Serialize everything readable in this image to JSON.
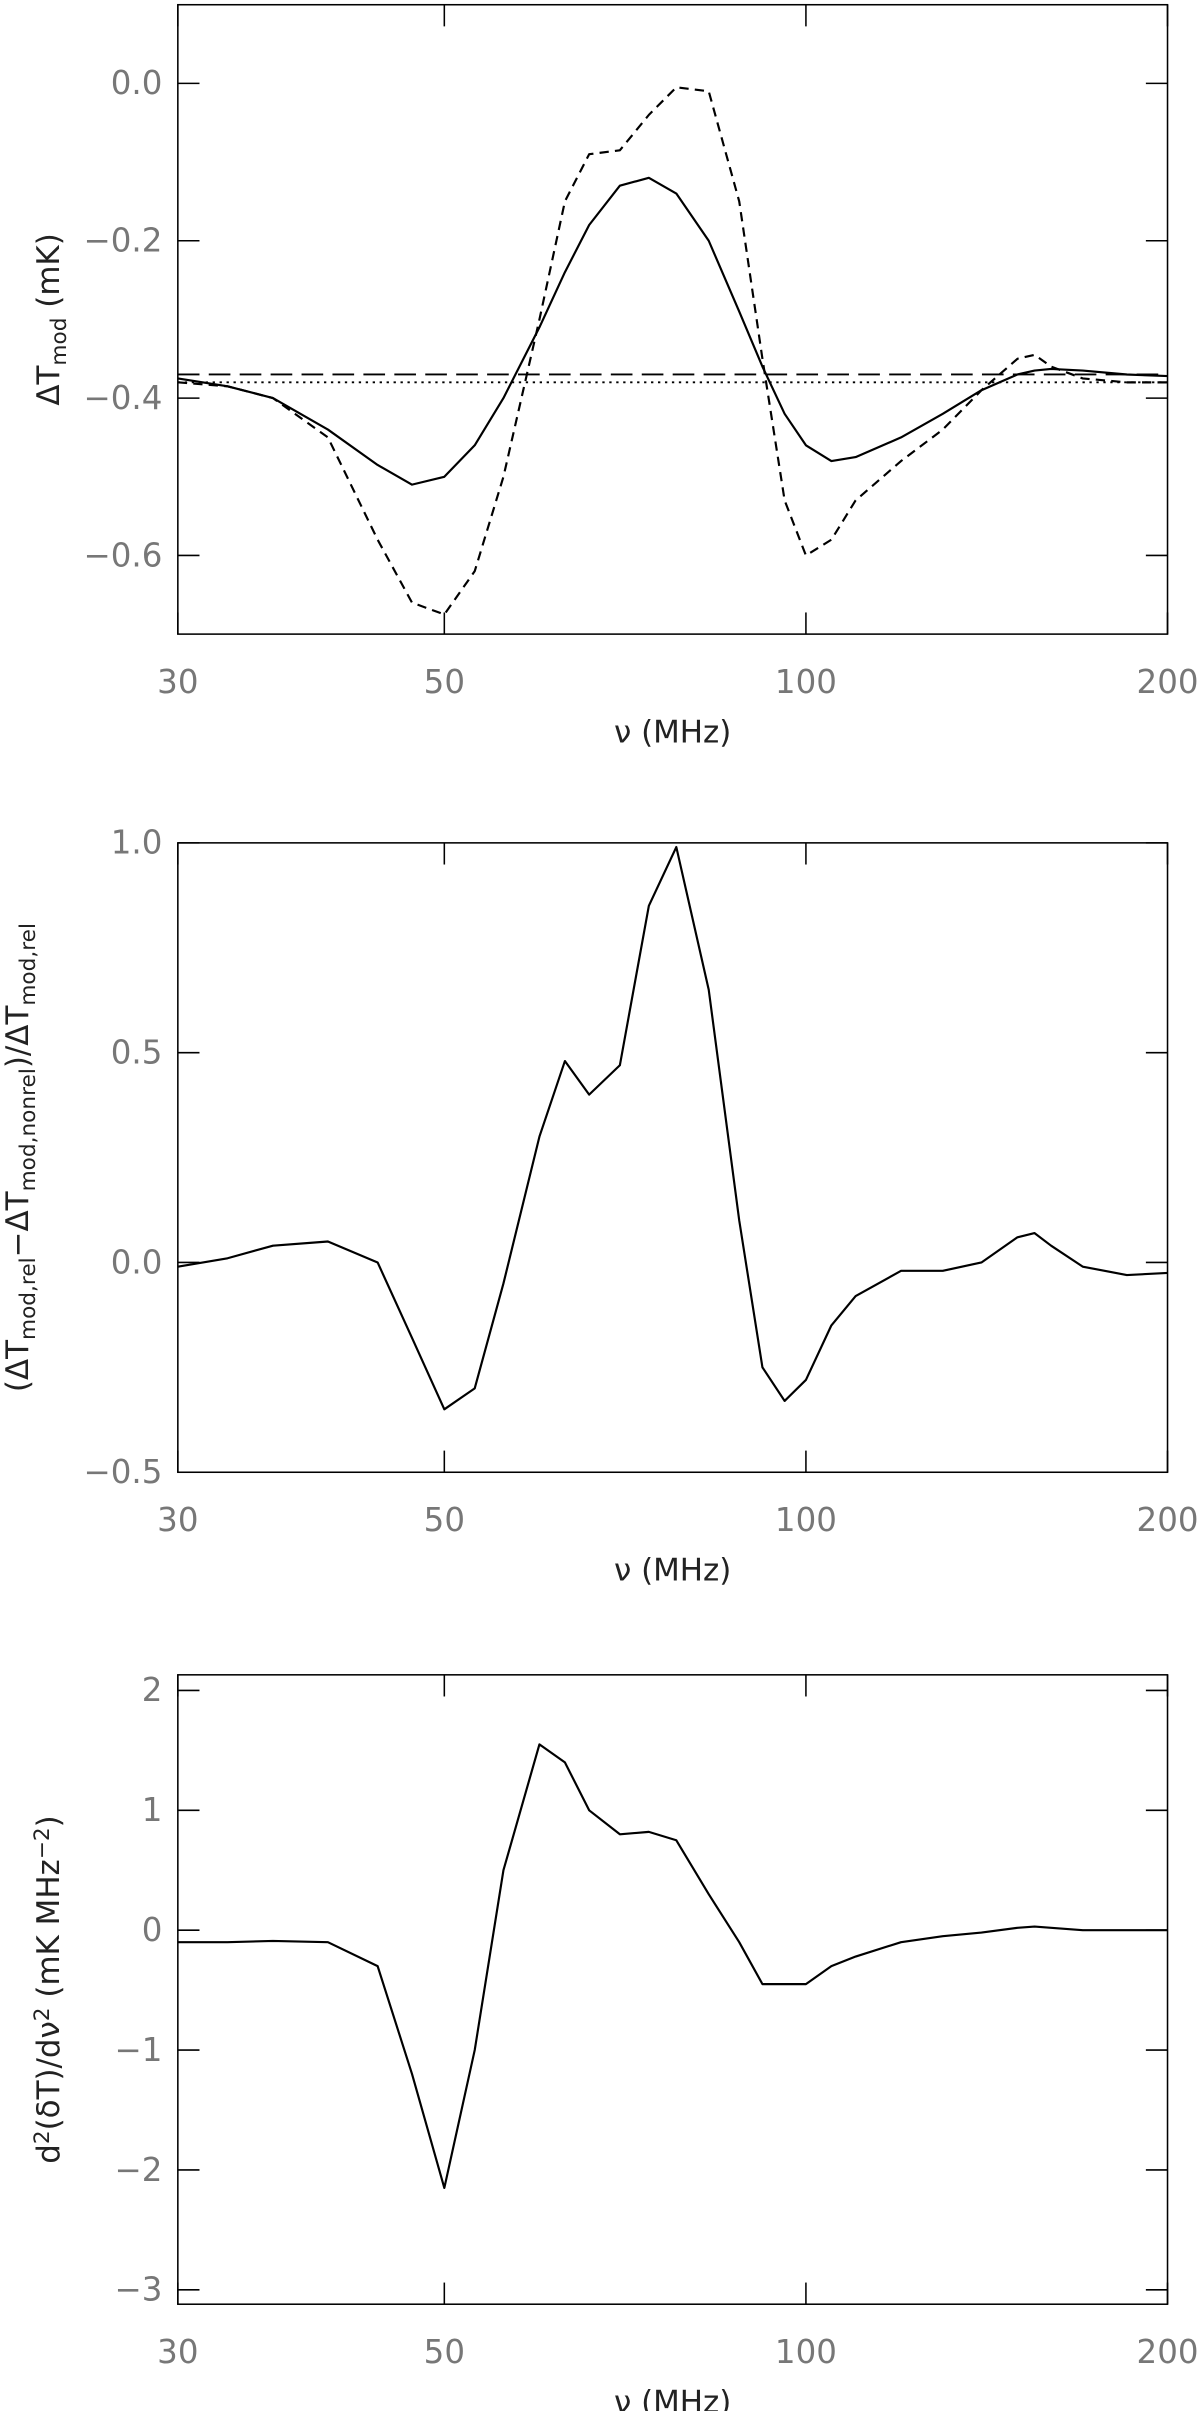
{
  "chart_data": [
    {
      "type": "line",
      "ylabel": [
        {
          "text": "ΔT"
        },
        {
          "text": "mod",
          "sub": true
        },
        {
          "text": " (mK)"
        }
      ],
      "xlabel": "ν (MHz)",
      "xlog": true,
      "xlim": [
        30,
        200
      ],
      "xticks": [
        30,
        50,
        100,
        200
      ],
      "ylim": [
        -0.7,
        0.1
      ],
      "yticks": [
        {
          "value": 0,
          "label": "0.0"
        },
        {
          "value": -0.2,
          "label": "−0.2"
        },
        {
          "value": -0.4,
          "label": "−0.4"
        },
        {
          "value": -0.6,
          "label": "−0.6"
        }
      ],
      "x": [
        30,
        33,
        36,
        40,
        44,
        47,
        50,
        53,
        56,
        60,
        63,
        66,
        70,
        74,
        78,
        83,
        88,
        92,
        96,
        100,
        105,
        110,
        120,
        130,
        140,
        150,
        155,
        160,
        170,
        185,
        200
      ],
      "series": [
        {
          "color": "#000000",
          "style": "solid",
          "values": [
            -0.375,
            -0.385,
            -0.4,
            -0.44,
            -0.485,
            -0.51,
            -0.5,
            -0.46,
            -0.4,
            -0.31,
            -0.24,
            -0.18,
            -0.13,
            -0.12,
            -0.14,
            -0.2,
            -0.29,
            -0.36,
            -0.42,
            -0.46,
            -0.48,
            -0.475,
            -0.45,
            -0.42,
            -0.39,
            -0.37,
            -0.365,
            -0.363,
            -0.365,
            -0.37,
            -0.372
          ]
        },
        {
          "color": "#000000",
          "style": "dashed",
          "values": [
            -0.38,
            -0.385,
            -0.4,
            -0.45,
            -0.58,
            -0.66,
            -0.675,
            -0.62,
            -0.5,
            -0.3,
            -0.15,
            -0.09,
            -0.085,
            -0.04,
            -0.005,
            -0.01,
            -0.15,
            -0.35,
            -0.53,
            -0.6,
            -0.58,
            -0.53,
            -0.48,
            -0.44,
            -0.39,
            -0.35,
            -0.345,
            -0.36,
            -0.375,
            -0.38,
            -0.38
          ]
        }
      ],
      "reference_lines": [
        {
          "value": -0.37,
          "style": "long-dashed",
          "color": "#000000"
        },
        {
          "value": -0.38,
          "style": "dotted",
          "color": "#000000"
        }
      ]
    },
    {
      "type": "line",
      "ylabel": [
        {
          "text": "(ΔT"
        },
        {
          "text": "mod,rel",
          "sub": true
        },
        {
          "text": "−ΔT"
        },
        {
          "text": "mod,nonrel",
          "sub": true
        },
        {
          "text": ")/ΔT"
        },
        {
          "text": "mod,rel",
          "sub": true
        }
      ],
      "xlabel": "ν (MHz)",
      "xlog": true,
      "xlim": [
        30,
        200
      ],
      "xticks": [
        30,
        50,
        100,
        200
      ],
      "ylim": [
        -0.5,
        1.0
      ],
      "yticks": [
        {
          "value": 1,
          "label": "1.0"
        },
        {
          "value": 0.5,
          "label": "0.5"
        },
        {
          "value": 0,
          "label": "0.0"
        },
        {
          "value": -0.5,
          "label": "−0.5"
        }
      ],
      "x": [
        30,
        33,
        36,
        40,
        44,
        47,
        50,
        53,
        56,
        60,
        63,
        66,
        70,
        74,
        78,
        83,
        88,
        92,
        96,
        100,
        105,
        110,
        120,
        130,
        140,
        150,
        155,
        160,
        170,
        185,
        200
      ],
      "series": [
        {
          "color": "#000000",
          "style": "solid",
          "values": [
            -0.01,
            0.01,
            0.04,
            0.05,
            0.0,
            -0.18,
            -0.35,
            -0.3,
            -0.05,
            0.3,
            0.48,
            0.4,
            0.47,
            0.85,
            0.99,
            0.65,
            0.1,
            -0.25,
            -0.33,
            -0.28,
            -0.15,
            -0.08,
            -0.02,
            -0.02,
            0.0,
            0.06,
            0.07,
            0.04,
            -0.01,
            -0.03,
            -0.025
          ]
        }
      ]
    },
    {
      "type": "line",
      "ylabel": [
        {
          "text": "d"
        },
        {
          "text": "2",
          "sup": true
        },
        {
          "text": "(δT)/dν"
        },
        {
          "text": "2",
          "sup": true
        },
        {
          "text": " (mK MHz"
        },
        {
          "text": "−2",
          "sup": true
        },
        {
          "text": ")"
        }
      ],
      "xlabel": "ν (MHz)",
      "xlog": true,
      "xlim": [
        30,
        200
      ],
      "xticks": [
        30,
        50,
        100,
        200
      ],
      "ylim": [
        -3.12,
        2.13
      ],
      "yticks": [
        2,
        1,
        0,
        {
          "value": -1,
          "label": "−1"
        },
        {
          "value": -2,
          "label": "−2"
        },
        {
          "value": -3,
          "label": "−3"
        }
      ],
      "x": [
        30,
        33,
        36,
        40,
        44,
        47,
        50,
        53,
        56,
        60,
        63,
        66,
        70,
        74,
        78,
        83,
        88,
        92,
        96,
        100,
        105,
        110,
        120,
        130,
        140,
        150,
        155,
        160,
        170,
        185,
        200
      ],
      "series": [
        {
          "color": "#000000",
          "style": "solid",
          "values": [
            -0.1,
            -0.1,
            -0.09,
            -0.1,
            -0.3,
            -1.2,
            -2.15,
            -1.0,
            0.5,
            1.55,
            1.4,
            1.0,
            0.8,
            0.82,
            0.75,
            0.3,
            -0.1,
            -0.45,
            -0.45,
            -0.45,
            -0.3,
            -0.22,
            -0.1,
            -0.05,
            -0.02,
            0.02,
            0.03,
            0.02,
            0.0,
            0.0,
            0.0
          ]
        }
      ]
    }
  ]
}
